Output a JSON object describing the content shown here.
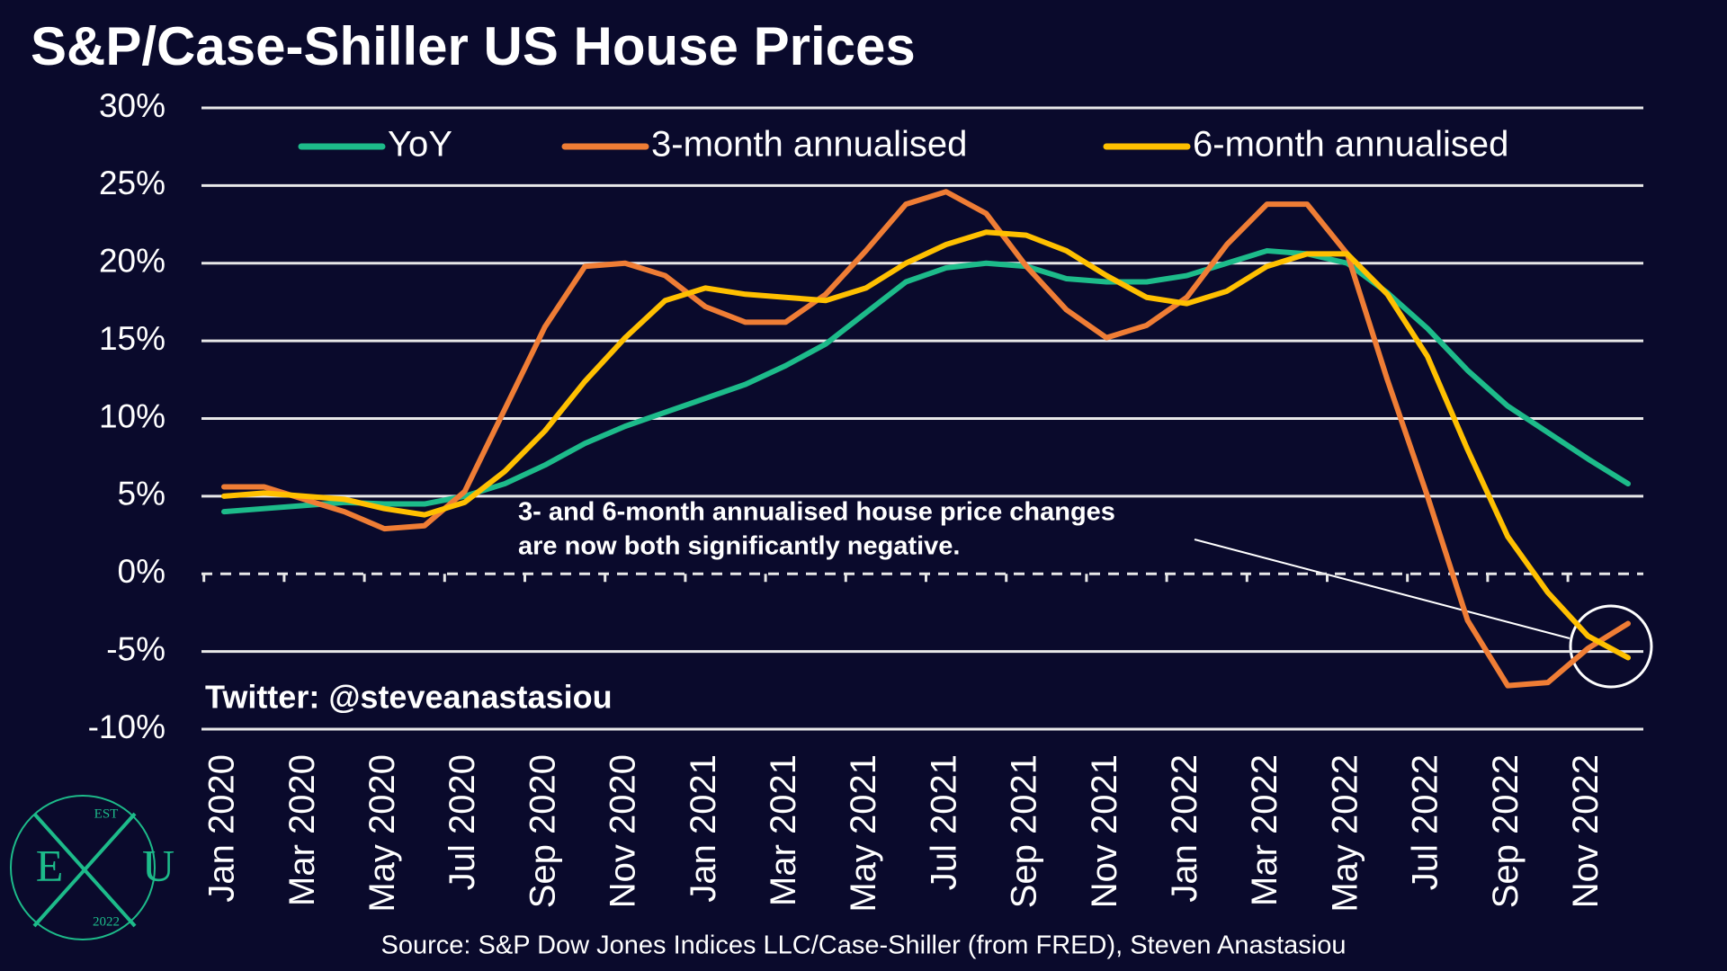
{
  "chart_data": {
    "type": "line",
    "title": "S&P/Case-Shiller US House Prices",
    "categories": [
      "Jan 2020",
      null,
      "Mar 2020",
      null,
      "May 2020",
      null,
      "Jul 2020",
      null,
      "Sep 2020",
      null,
      "Nov 2020",
      null,
      "Jan 2021",
      null,
      "Mar 2021",
      null,
      "May 2021",
      null,
      "Jul 2021",
      null,
      "Sep 2021",
      null,
      "Nov 2021",
      null,
      "Jan 2022",
      null,
      "Mar 2022",
      null,
      "May 2022",
      null,
      "Jul 2022",
      null,
      "Sep 2022",
      null,
      "Nov 2022",
      null
    ],
    "series": [
      {
        "name": "YoY",
        "color": "#1dbb8a",
        "values": [
          4.0,
          4.2,
          4.4,
          4.6,
          4.5,
          4.5,
          5.0,
          5.8,
          7.0,
          8.4,
          9.5,
          10.4,
          11.3,
          12.2,
          13.4,
          14.8,
          16.8,
          18.8,
          19.7,
          20.0,
          19.8,
          19.0,
          18.8,
          18.8,
          19.2,
          20.0,
          20.8,
          20.6,
          20.0,
          18.1,
          15.8,
          13.1,
          10.8,
          9.1,
          7.4,
          5.8
        ]
      },
      {
        "name": "3-month annualised",
        "color": "#ef7d35",
        "values": [
          5.6,
          5.6,
          4.8,
          4.0,
          2.9,
          3.1,
          5.3,
          10.6,
          15.9,
          19.8,
          20.0,
          19.2,
          17.2,
          16.2,
          16.2,
          18.0,
          20.8,
          23.8,
          24.6,
          23.2,
          19.8,
          17.0,
          15.2,
          16.0,
          17.8,
          21.2,
          23.8,
          23.8,
          20.6,
          12.5,
          5.0,
          -3.0,
          -7.2,
          -7.0,
          -4.8,
          -3.2
        ]
      },
      {
        "name": "6-month annualised",
        "color": "#ffc000",
        "values": [
          5.0,
          5.2,
          5.0,
          4.8,
          4.2,
          3.8,
          4.6,
          6.6,
          9.2,
          12.4,
          15.2,
          17.6,
          18.4,
          18.0,
          17.8,
          17.6,
          18.4,
          20.0,
          21.2,
          22.0,
          21.8,
          20.8,
          19.2,
          17.8,
          17.4,
          18.2,
          19.8,
          20.6,
          20.6,
          18.0,
          14.0,
          8.0,
          2.4,
          -1.2,
          -4.0,
          -5.4
        ]
      }
    ],
    "ylim": [
      -10,
      30
    ],
    "yticks": [
      {
        "value": -10,
        "label": "-10%"
      },
      {
        "value": -5,
        "label": "-5%"
      },
      {
        "value": 0,
        "label": "0%"
      },
      {
        "value": 5,
        "label": "5%"
      },
      {
        "value": 10,
        "label": "10%"
      },
      {
        "value": 15,
        "label": "15%"
      },
      {
        "value": 20,
        "label": "20%"
      },
      {
        "value": 25,
        "label": "25%"
      },
      {
        "value": 30,
        "label": "30%"
      }
    ],
    "grid": true,
    "legend": "top",
    "annotation": [
      "3- and 6-month annualised house price changes",
      "are now both significantly negative."
    ],
    "credit": "Twitter: @steveanastasiou",
    "source": "Source: S&P Dow Jones Indices LLC/Case-Shiller (from FRED), Steven Anastasiou"
  },
  "logo": {
    "top": "EST",
    "left": "E",
    "right": "U",
    "bottom": "2022"
  }
}
